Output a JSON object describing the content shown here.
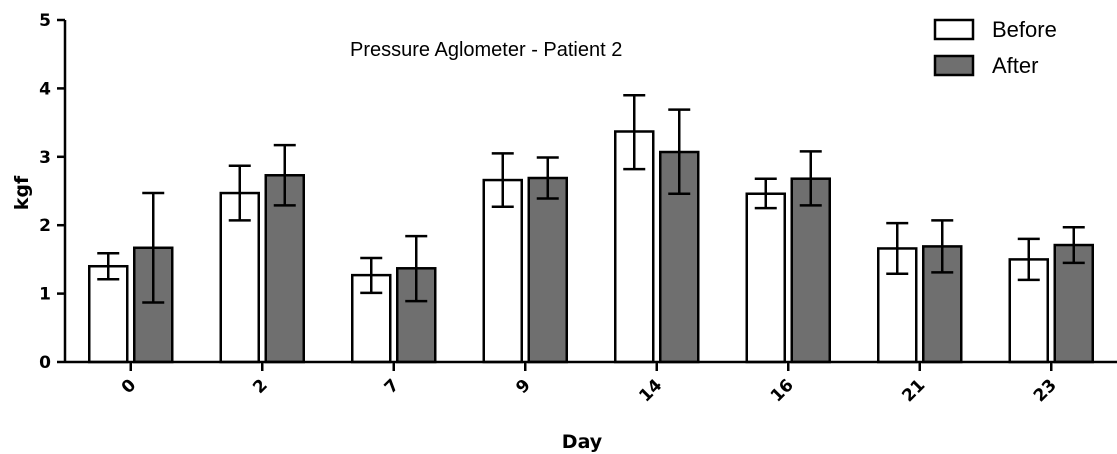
{
  "chart_data": {
    "type": "bar",
    "title": "Pressure Aglometer - Patient 2",
    "xlabel": "Day",
    "ylabel": "kgf",
    "categories": [
      "0",
      "2",
      "7",
      "9",
      "14",
      "16",
      "21",
      "23"
    ],
    "ylim": [
      0,
      5
    ],
    "yticks": [
      "0",
      "1",
      "2",
      "3",
      "4",
      "5"
    ],
    "legend_position": "top-right",
    "series": [
      {
        "name": "Before",
        "color": "#ffffff",
        "values": [
          1.4,
          2.47,
          1.27,
          2.66,
          3.37,
          2.46,
          1.66,
          1.5
        ],
        "err_low": [
          1.21,
          2.07,
          1.01,
          2.27,
          2.82,
          2.25,
          1.29,
          1.2
        ],
        "err_high": [
          1.59,
          2.87,
          1.52,
          3.05,
          3.9,
          2.68,
          2.03,
          1.8
        ]
      },
      {
        "name": "After",
        "color": "#6f6f6f",
        "values": [
          1.67,
          2.73,
          1.37,
          2.69,
          3.07,
          2.68,
          1.69,
          1.71
        ],
        "err_low": [
          0.87,
          2.29,
          0.89,
          2.39,
          2.46,
          2.29,
          1.31,
          1.45
        ],
        "err_high": [
          2.47,
          3.17,
          1.84,
          2.99,
          3.69,
          3.08,
          2.07,
          1.97
        ]
      }
    ]
  }
}
